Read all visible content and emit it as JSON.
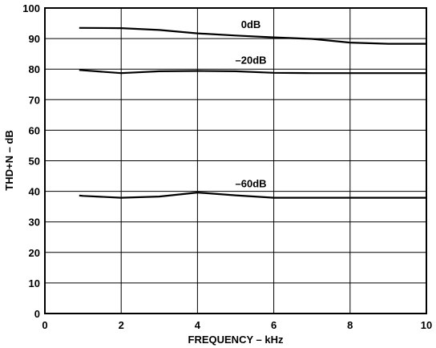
{
  "chart_data": {
    "type": "line",
    "title": "",
    "xlabel": "FREQUENCY – kHz",
    "ylabel": "THD+N  – dB",
    "xlim": [
      0,
      10
    ],
    "ylim": [
      0,
      100
    ],
    "xticks": [
      0,
      2,
      4,
      6,
      8,
      10
    ],
    "yticks": [
      0,
      10,
      20,
      30,
      40,
      50,
      60,
      70,
      80,
      90,
      100
    ],
    "grid": true,
    "series": [
      {
        "name": "0dB",
        "x": [
          0.9,
          1,
          2,
          3,
          4,
          5,
          6,
          7,
          8,
          9,
          10
        ],
        "y": [
          93.5,
          93.5,
          93.4,
          92.8,
          91.7,
          91.0,
          90.4,
          89.9,
          88.7,
          88.3,
          88.3
        ],
        "label_at": [
          5.4,
          93.5
        ]
      },
      {
        "name": "–20dB",
        "x": [
          0.9,
          1,
          2,
          3,
          4,
          5,
          6,
          7,
          8,
          9,
          10
        ],
        "y": [
          79.7,
          79.6,
          78.7,
          79.3,
          79.4,
          79.3,
          78.8,
          78.7,
          78.7,
          78.7,
          78.7
        ],
        "label_at": [
          5.4,
          81.8
        ]
      },
      {
        "name": "–60dB",
        "x": [
          0.9,
          1,
          2,
          3,
          4,
          5,
          6,
          7,
          8,
          9,
          10
        ],
        "y": [
          38.6,
          38.5,
          37.9,
          38.3,
          39.6,
          38.7,
          37.9,
          37.9,
          37.9,
          37.9,
          37.9
        ],
        "label_at": [
          5.4,
          41.3
        ]
      }
    ]
  }
}
